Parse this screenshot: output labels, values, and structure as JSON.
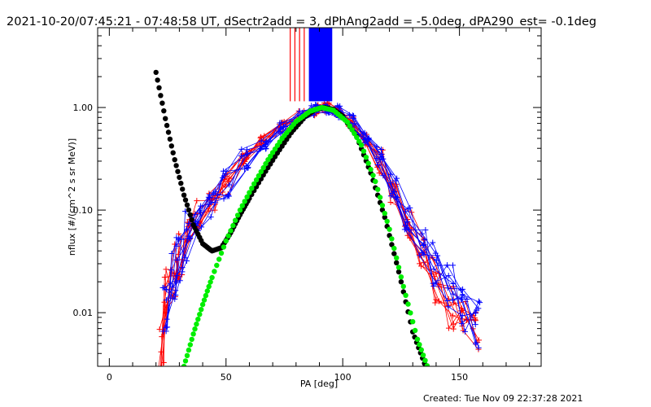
{
  "chart_data": {
    "type": "line",
    "title": "2021-10-20/07:45:21 - 07:48:58 UT, dSectr2add = 3, dPhAng2add = -5.0deg, dPA290_est= -0.1deg",
    "xlabel": "PA [deg]",
    "ylabel": "nflux [#/(cm^2 s sr MeV)]",
    "xlim": [
      -5,
      185
    ],
    "ylim": [
      0.003,
      6.0
    ],
    "yscale": "log",
    "grid": false,
    "xticks": [
      {
        "v": 0,
        "label": "0"
      },
      {
        "v": 50,
        "label": "50"
      },
      {
        "v": 100,
        "label": "100"
      },
      {
        "v": 150,
        "label": "150"
      }
    ],
    "yticks": [
      {
        "v": 1.0,
        "label": "1.00"
      },
      {
        "v": 0.1,
        "label": "0.10"
      },
      {
        "v": 0.01,
        "label": "0.01"
      }
    ],
    "series": [
      {
        "color": "#ff0000",
        "marker": "plus",
        "x": [
          22,
          25,
          28,
          30,
          34,
          38,
          44,
          50,
          58,
          66,
          74,
          82,
          88,
          93,
          98,
          104,
          110,
          116,
          122,
          128,
          134,
          140,
          146,
          152,
          157
        ],
        "y": [
          0.0042,
          0.016,
          0.026,
          0.04,
          0.065,
          0.09,
          0.13,
          0.2,
          0.32,
          0.47,
          0.64,
          0.82,
          0.96,
          0.98,
          0.9,
          0.72,
          0.48,
          0.28,
          0.15,
          0.075,
          0.04,
          0.022,
          0.013,
          0.009,
          0.0075
        ]
      },
      {
        "color": "#0000ff",
        "marker": "plus",
        "x": [
          24,
          27,
          30,
          34,
          38,
          44,
          50,
          58,
          66,
          74,
          82,
          88,
          93,
          98,
          104,
          110,
          116,
          122,
          128,
          134,
          140,
          146,
          152,
          158
        ],
        "y": [
          0.012,
          0.022,
          0.035,
          0.055,
          0.08,
          0.12,
          0.18,
          0.3,
          0.45,
          0.62,
          0.82,
          0.96,
          0.99,
          0.91,
          0.74,
          0.5,
          0.3,
          0.16,
          0.085,
          0.046,
          0.026,
          0.016,
          0.011,
          0.0085
        ]
      },
      {
        "color": "#000000",
        "marker": "dot",
        "x": [
          20,
          24,
          28,
          32,
          36,
          40,
          44,
          48,
          52,
          56,
          60,
          66,
          72,
          78,
          84,
          88,
          92,
          96,
          100,
          106,
          112,
          118,
          124,
          130,
          135
        ],
        "y": [
          2.2,
          0.78,
          0.31,
          0.14,
          0.072,
          0.047,
          0.04,
          0.043,
          0.06,
          0.09,
          0.13,
          0.22,
          0.36,
          0.57,
          0.82,
          0.95,
          1.0,
          0.96,
          0.82,
          0.52,
          0.23,
          0.085,
          0.025,
          0.0065,
          0.0032
        ]
      },
      {
        "color": "#00ee00",
        "marker": "dot",
        "x": [
          32,
          36,
          40,
          44,
          50,
          56,
          62,
          68,
          74,
          80,
          86,
          91,
          96,
          102,
          108,
          114,
          120,
          126,
          132,
          137
        ],
        "y": [
          0.003,
          0.0062,
          0.012,
          0.022,
          0.05,
          0.1,
          0.18,
          0.31,
          0.5,
          0.73,
          0.92,
          1.0,
          0.94,
          0.72,
          0.43,
          0.19,
          0.065,
          0.018,
          0.0055,
          0.0027
        ]
      }
    ],
    "vertical_markers": {
      "red_x": [
        77.5,
        79.5,
        81.5,
        83.5
      ],
      "blue_x_range": [
        85.5,
        95.5
      ]
    }
  },
  "footer": {
    "created": "Created: Tue Nov 09 22:37:28 2021"
  }
}
